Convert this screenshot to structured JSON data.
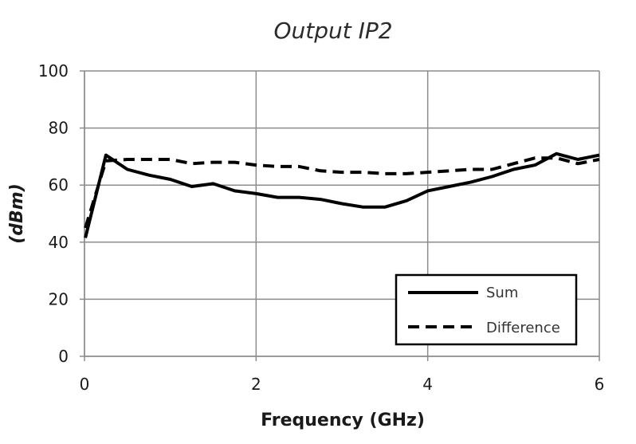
{
  "chart_data": {
    "type": "line",
    "title": "Output IP2",
    "xlabel": "Frequency (GHz)",
    "ylabel": "(dBm)",
    "xlim": [
      0,
      6
    ],
    "ylim": [
      0,
      100
    ],
    "x_ticks": [
      "0",
      "2",
      "4",
      "6"
    ],
    "y_ticks": [
      "0",
      "20",
      "40",
      "60",
      "80",
      "100"
    ],
    "grid": true,
    "legend_position": "bottom-right",
    "series": [
      {
        "name": "Sum",
        "style": "solid",
        "color": "#000000",
        "x": [
          0.01,
          0.25,
          0.5,
          0.75,
          1.0,
          1.25,
          1.5,
          1.75,
          2.0,
          2.25,
          2.5,
          2.75,
          3.0,
          3.25,
          3.5,
          3.75,
          4.0,
          4.25,
          4.5,
          4.75,
          5.0,
          5.25,
          5.5,
          5.75,
          6.0
        ],
        "y": [
          41.5,
          70.5,
          65.5,
          63.5,
          62,
          59.5,
          60.5,
          58,
          57,
          55.7,
          55.7,
          55,
          53.5,
          52.3,
          52.3,
          54.5,
          58,
          59.5,
          61,
          63,
          65.5,
          67,
          71,
          69,
          70.5
        ]
      },
      {
        "name": "Difference",
        "style": "dashed",
        "color": "#000000",
        "x": [
          0.01,
          0.25,
          0.5,
          0.75,
          1.0,
          1.25,
          1.5,
          1.75,
          2.0,
          2.25,
          2.5,
          2.75,
          3.0,
          3.25,
          3.5,
          3.75,
          4.0,
          4.25,
          4.5,
          4.75,
          5.0,
          5.25,
          5.5,
          5.75,
          6.0
        ],
        "y": [
          45,
          68.5,
          69,
          69,
          69,
          67.5,
          68,
          68,
          67,
          66.5,
          66.5,
          65,
          64.5,
          64.5,
          64,
          64,
          64.5,
          65,
          65.5,
          65.5,
          67.5,
          69.5,
          69.5,
          67.5,
          69
        ]
      }
    ]
  }
}
